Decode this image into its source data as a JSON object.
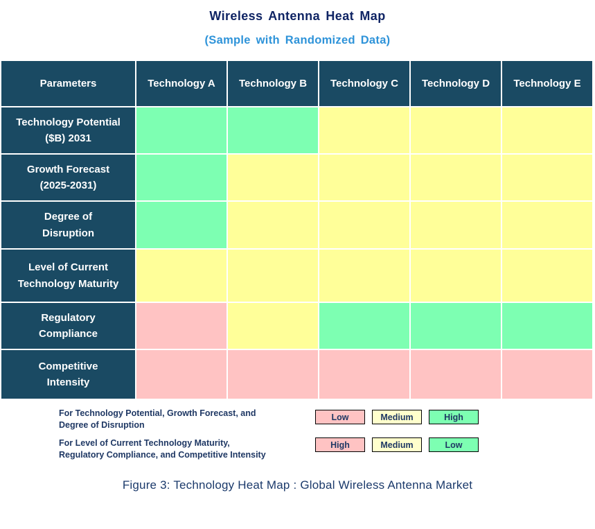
{
  "title": "Wireless Antenna Heat Map",
  "subtitle": "(Sample with Randomized Data)",
  "caption": "Figure 3: Technology Heat Map : Global Wireless Antenna Market",
  "palette": {
    "green": "#7DFFB2",
    "yellow": "#FFFF99",
    "pink": "#FFC3C3",
    "legend_yellow": "#FFFFCC",
    "header_navy": "#1A4A63",
    "title_navy": "#0F2464",
    "subtitle_blue": "#2E93D9",
    "text_navy": "#1F3864"
  },
  "table": {
    "header": [
      "Parameters",
      "Technology A",
      "Technology B",
      "Technology C",
      "Technology D",
      "Technology E"
    ],
    "rows": [
      {
        "label": "Technology Potential\n($B) 2031",
        "cell_colors": [
          "green",
          "green",
          "yellow",
          "yellow",
          "yellow"
        ]
      },
      {
        "label": "Growth Forecast\n(2025-2031)",
        "cell_colors": [
          "green",
          "yellow",
          "yellow",
          "yellow",
          "yellow"
        ]
      },
      {
        "label": "Degree of\nDisruption",
        "cell_colors": [
          "green",
          "yellow",
          "yellow",
          "yellow",
          "yellow"
        ]
      },
      {
        "label": "Level of Current\nTechnology Maturity",
        "cell_colors": [
          "yellow",
          "yellow",
          "yellow",
          "yellow",
          "yellow"
        ]
      },
      {
        "label": "Regulatory\nCompliance",
        "cell_colors": [
          "pink",
          "yellow",
          "green",
          "green",
          "green"
        ]
      },
      {
        "label": "Competitive\nIntensity",
        "cell_colors": [
          "pink",
          "pink",
          "pink",
          "pink",
          "pink"
        ]
      }
    ]
  },
  "legend": {
    "groups": [
      {
        "line1": "For Technology Potential, Growth Forecast, and",
        "line2": "Degree of Disruption",
        "items": [
          {
            "label": "Low",
            "color": "pink"
          },
          {
            "label": "Medium",
            "color": "legend_yellow"
          },
          {
            "label": "High",
            "color": "green"
          }
        ]
      },
      {
        "line1": "For Level of Current Technology Maturity,",
        "line2": "Regulatory Compliance, and Competitive Intensity",
        "items": [
          {
            "label": "High",
            "color": "pink"
          },
          {
            "label": "Medium",
            "color": "legend_yellow"
          },
          {
            "label": "Low",
            "color": "green"
          }
        ]
      }
    ]
  },
  "chart_data": {
    "type": "heatmap",
    "title": "Wireless Antenna Heat Map",
    "subtitle": "(Sample with Randomized Data)",
    "columns": [
      "Technology A",
      "Technology B",
      "Technology C",
      "Technology D",
      "Technology E"
    ],
    "rows": [
      "Technology Potential ($B) 2031",
      "Growth Forecast (2025-2031)",
      "Degree of Disruption",
      "Level of Current Technology Maturity",
      "Regulatory Compliance",
      "Competitive Intensity"
    ],
    "values": [
      [
        "High",
        "High",
        "Medium",
        "Medium",
        "Medium"
      ],
      [
        "High",
        "Medium",
        "Medium",
        "Medium",
        "Medium"
      ],
      [
        "High",
        "Medium",
        "Medium",
        "Medium",
        "Medium"
      ],
      [
        "Medium",
        "Medium",
        "Medium",
        "Medium",
        "Medium"
      ],
      [
        "High",
        "Medium",
        "Low",
        "Low",
        "Low"
      ],
      [
        "High",
        "High",
        "High",
        "High",
        "High"
      ]
    ],
    "cell_colors": [
      [
        "green",
        "green",
        "yellow",
        "yellow",
        "yellow"
      ],
      [
        "green",
        "yellow",
        "yellow",
        "yellow",
        "yellow"
      ],
      [
        "green",
        "yellow",
        "yellow",
        "yellow",
        "yellow"
      ],
      [
        "yellow",
        "yellow",
        "yellow",
        "yellow",
        "yellow"
      ],
      [
        "pink",
        "yellow",
        "green",
        "green",
        "green"
      ],
      [
        "pink",
        "pink",
        "pink",
        "pink",
        "pink"
      ]
    ],
    "color_scale": {
      "pink": "#FFC3C3",
      "yellow": "#FFFF99",
      "green": "#7DFFB2"
    },
    "legend_position": "bottom"
  }
}
